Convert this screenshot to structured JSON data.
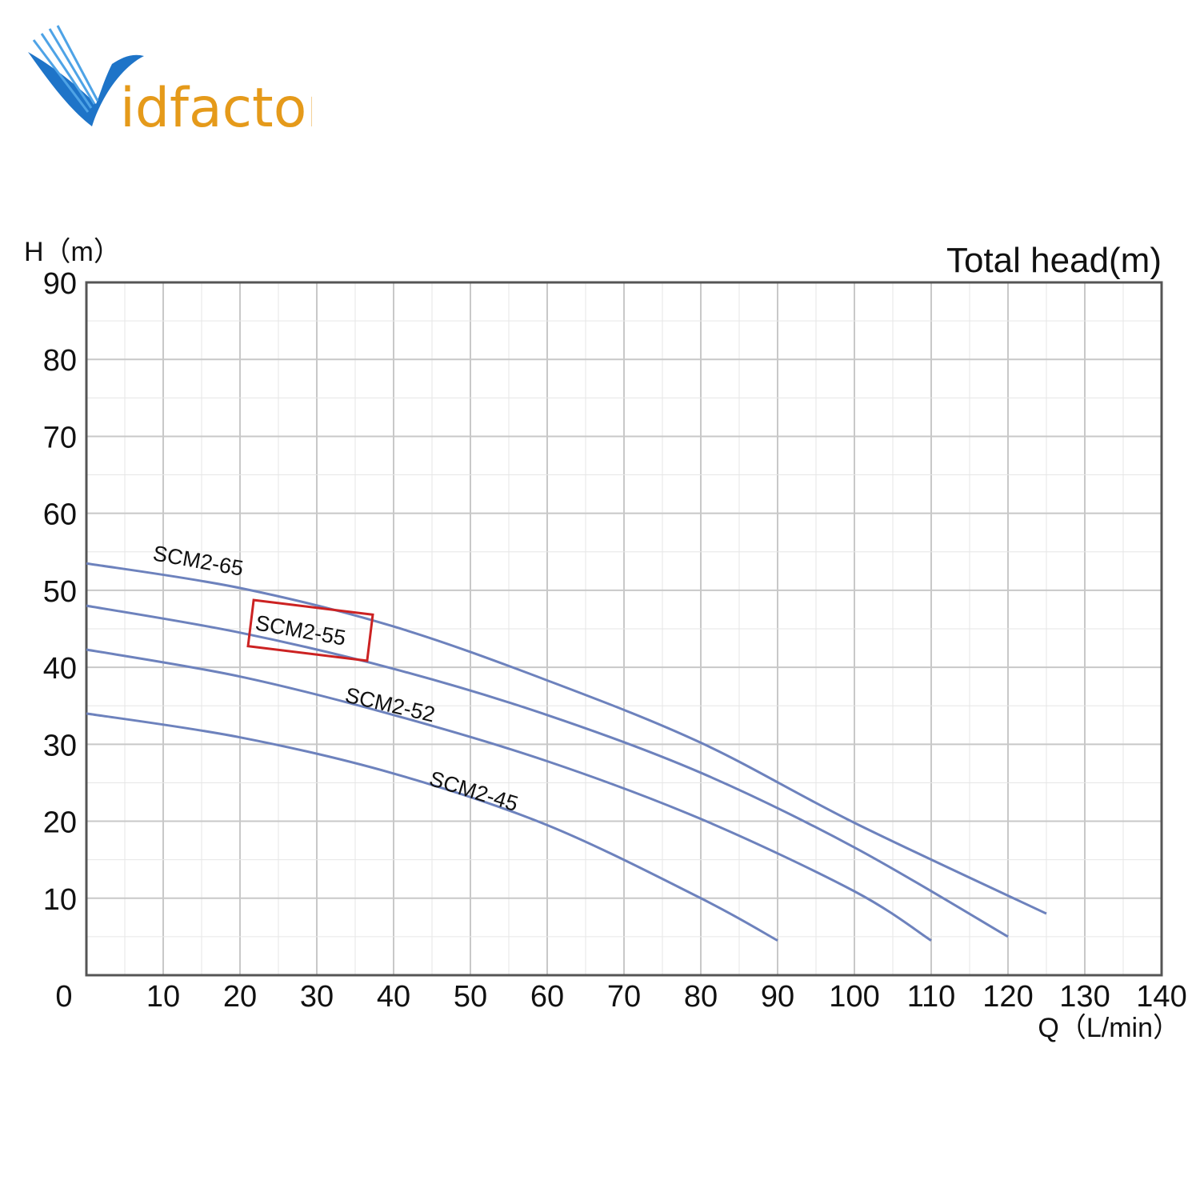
{
  "logo": {
    "text": "idfactor",
    "colors": {
      "v_blue": "#1e74c8",
      "text_orange": "#e59a1a"
    }
  },
  "chart_data": {
    "type": "line",
    "title": "Total head(m)",
    "ylabel": "H（m）",
    "xlabel": "Q（L/min）",
    "xlim": [
      0,
      140
    ],
    "ylim": [
      0,
      90
    ],
    "x_ticks": [
      0,
      10,
      20,
      30,
      40,
      50,
      60,
      70,
      80,
      90,
      100,
      110,
      120,
      130,
      140
    ],
    "y_ticks": [
      10,
      20,
      30,
      40,
      50,
      60,
      70,
      80,
      90
    ],
    "grid": true,
    "highlighted_series": "SCM2-55",
    "colors": {
      "curve": "#6d82bd",
      "highlight_box": "#cc2222",
      "grid": "#cccccc"
    },
    "series": [
      {
        "name": "SCM2-65",
        "x": [
          0,
          20,
          40,
          60,
          80,
          100,
          125
        ],
        "y": [
          53.5,
          50.3,
          45.3,
          38.3,
          30.2,
          19.8,
          8
        ]
      },
      {
        "name": "SCM2-55",
        "x": [
          0,
          20,
          40,
          60,
          80,
          100,
          120
        ],
        "y": [
          48,
          44.5,
          39.8,
          33.8,
          26.3,
          16.6,
          5
        ]
      },
      {
        "name": "SCM2-52",
        "x": [
          0,
          20,
          40,
          60,
          80,
          100,
          110
        ],
        "y": [
          42.3,
          38.8,
          33.8,
          27.8,
          20.3,
          10.9,
          4.5
        ]
      },
      {
        "name": "SCM2-45",
        "x": [
          0,
          20,
          40,
          60,
          80,
          90
        ],
        "y": [
          34,
          30.9,
          26.2,
          19.5,
          10,
          4.5
        ]
      }
    ]
  }
}
